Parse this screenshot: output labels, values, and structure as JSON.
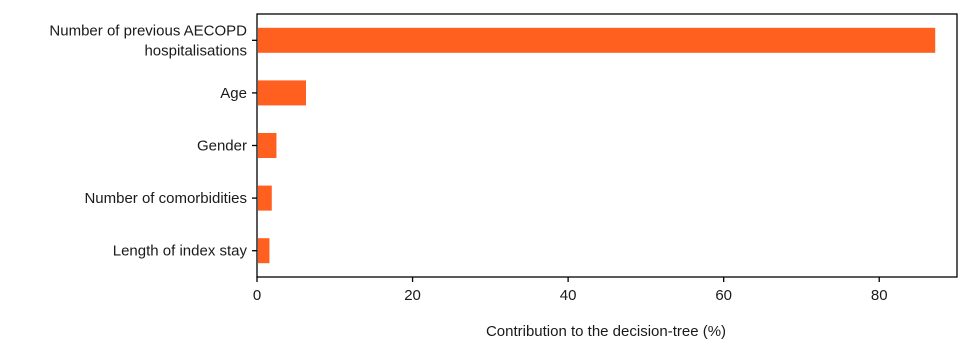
{
  "chart_data": {
    "type": "bar",
    "orientation": "horizontal",
    "categories": [
      [
        "Number of previous AECOPD",
        "hospitalisations"
      ],
      [
        "Age"
      ],
      [
        "Gender"
      ],
      [
        "Number of comorbidities"
      ],
      [
        "Length of index stay"
      ]
    ],
    "values": [
      87.2,
      6.3,
      2.5,
      1.9,
      1.6
    ],
    "xlabel": "Contribution to the decision-tree (%)",
    "ylabel": "",
    "xlim": [
      0,
      90
    ],
    "xticks": [
      0,
      20,
      40,
      60,
      80
    ],
    "bar_color": "#ff5f1f",
    "grid": false,
    "axes_box": "top-right-left-bottom"
  }
}
